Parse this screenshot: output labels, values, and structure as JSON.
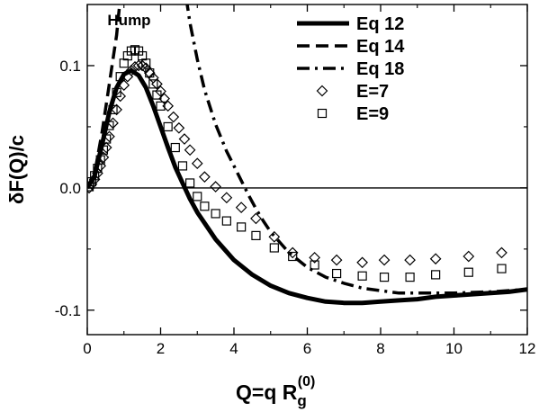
{
  "chart_data": {
    "type": "line",
    "title": "",
    "xlabel_main": "Q=q R",
    "xlabel_sub": "g",
    "xlabel_sup": "(0)",
    "ylabel": "δF(Q)/c",
    "xlim": [
      0,
      12
    ],
    "ylim": [
      -0.12,
      0.15
    ],
    "xticks": [
      0,
      2,
      4,
      6,
      8,
      10,
      12
    ],
    "xtick_labels": [
      "0",
      "2",
      "4",
      "6",
      "8",
      "10",
      "12"
    ],
    "yticks": [
      -0.1,
      0.0,
      0.1
    ],
    "ytick_labels": [
      "-0.1",
      "0.0",
      "0.1"
    ],
    "reference_line_y": 0,
    "grid": false,
    "legend_position": "top-right",
    "annotation": {
      "text": "Hump",
      "x": 0.55,
      "y": 0.133
    },
    "series": [
      {
        "name": "Eq 12",
        "style": "solid",
        "x": [
          0,
          0.2,
          0.4,
          0.6,
          0.8,
          1.0,
          1.2,
          1.4,
          1.6,
          1.8,
          2.0,
          2.2,
          2.4,
          2.6,
          2.8,
          3.0,
          3.5,
          4.0,
          4.5,
          5.0,
          5.5,
          6.0,
          6.5,
          7.0,
          7.5,
          8.0,
          8.5,
          9.0,
          9.5,
          10.0,
          10.5,
          11.0,
          11.5,
          12.0
        ],
        "y": [
          0,
          0.01,
          0.035,
          0.062,
          0.082,
          0.093,
          0.096,
          0.092,
          0.082,
          0.067,
          0.05,
          0.033,
          0.017,
          0.004,
          -0.009,
          -0.02,
          -0.042,
          -0.059,
          -0.071,
          -0.08,
          -0.086,
          -0.09,
          -0.093,
          -0.094,
          -0.094,
          -0.093,
          -0.092,
          -0.091,
          -0.089,
          -0.088,
          -0.087,
          -0.086,
          -0.085,
          -0.083
        ]
      },
      {
        "name": "Eq 14",
        "style": "dashed",
        "x": [
          0,
          0.2,
          0.4,
          0.6,
          0.7,
          0.8,
          0.85,
          0.9
        ],
        "y": [
          0,
          0.012,
          0.045,
          0.085,
          0.105,
          0.125,
          0.14,
          0.155
        ]
      },
      {
        "name": "Eq 18",
        "style": "dashdot",
        "x": [
          2.7,
          2.8,
          3.0,
          3.2,
          3.5,
          3.8,
          4.0,
          4.2,
          4.4,
          4.6,
          4.8,
          5.0,
          5.5,
          6.0,
          6.5,
          7.0,
          7.5,
          8.0,
          8.5,
          9.0,
          10.0,
          11.0,
          12.0
        ],
        "y": [
          0.155,
          0.135,
          0.105,
          0.08,
          0.052,
          0.03,
          0.018,
          0.006,
          -0.006,
          -0.017,
          -0.027,
          -0.036,
          -0.053,
          -0.065,
          -0.073,
          -0.078,
          -0.082,
          -0.084,
          -0.086,
          -0.086,
          -0.086,
          -0.085,
          -0.083
        ]
      },
      {
        "name": "E=7",
        "style": "diamond",
        "x": [
          0.05,
          0.12,
          0.2,
          0.28,
          0.36,
          0.44,
          0.52,
          0.6,
          0.7,
          0.8,
          0.9,
          1.0,
          1.1,
          1.2,
          1.3,
          1.4,
          1.5,
          1.6,
          1.7,
          1.8,
          1.9,
          2.0,
          2.1,
          2.2,
          2.35,
          2.5,
          2.65,
          2.8,
          3.0,
          3.2,
          3.5,
          3.8,
          4.2,
          4.6,
          5.1,
          5.6,
          6.2,
          6.8,
          7.5,
          8.1,
          8.8,
          9.5,
          10.4,
          11.3
        ],
        "y": [
          0.0,
          0.003,
          0.007,
          0.012,
          0.018,
          0.025,
          0.033,
          0.042,
          0.053,
          0.064,
          0.075,
          0.084,
          0.091,
          0.096,
          0.099,
          0.1,
          0.1,
          0.098,
          0.094,
          0.09,
          0.085,
          0.079,
          0.073,
          0.067,
          0.058,
          0.049,
          0.04,
          0.031,
          0.02,
          0.009,
          0.001,
          -0.008,
          -0.016,
          -0.025,
          -0.04,
          -0.053,
          -0.057,
          -0.059,
          -0.061,
          -0.059,
          -0.059,
          -0.058,
          -0.056,
          -0.053
        ]
      },
      {
        "name": "E=9",
        "style": "square",
        "x": [
          0.05,
          0.12,
          0.2,
          0.28,
          0.36,
          0.44,
          0.52,
          0.6,
          0.7,
          0.8,
          0.9,
          1.0,
          1.1,
          1.2,
          1.3,
          1.4,
          1.5,
          1.6,
          1.7,
          1.8,
          1.9,
          2.0,
          2.2,
          2.4,
          2.6,
          2.8,
          3.0,
          3.2,
          3.5,
          3.8,
          4.2,
          4.6,
          5.1,
          5.6,
          6.2,
          6.8,
          7.5,
          8.1,
          8.8,
          9.5,
          10.4,
          11.3
        ],
        "y": [
          0.001,
          0.005,
          0.01,
          0.016,
          0.023,
          0.031,
          0.04,
          0.051,
          0.064,
          0.078,
          0.091,
          0.102,
          0.108,
          0.112,
          0.113,
          0.112,
          0.108,
          0.102,
          0.094,
          0.085,
          0.076,
          0.067,
          0.05,
          0.033,
          0.018,
          0.004,
          -0.007,
          -0.015,
          -0.021,
          -0.027,
          -0.032,
          -0.039,
          -0.049,
          -0.056,
          -0.063,
          -0.07,
          -0.072,
          -0.073,
          -0.073,
          -0.071,
          -0.069,
          -0.066
        ]
      }
    ]
  }
}
